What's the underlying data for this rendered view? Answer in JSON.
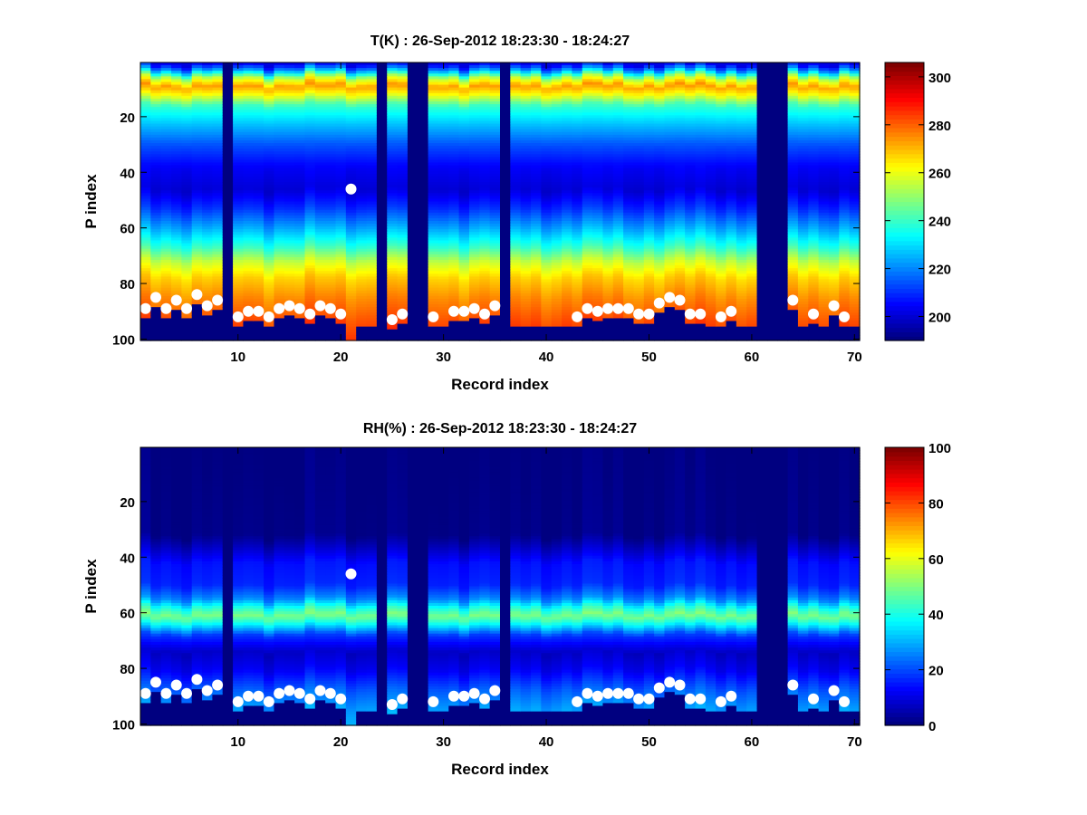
{
  "chart_data": [
    {
      "type": "heatmap",
      "title": "T(K) : 26-Sep-2012 18:23:30 - 18:24:27",
      "xlabel": "Record index",
      "ylabel": "P index",
      "xlim": [
        0.5,
        70.5
      ],
      "ylim": [
        100.5,
        0.5
      ],
      "xticks": [
        10,
        20,
        30,
        40,
        50,
        60,
        70
      ],
      "yticks": [
        20,
        40,
        60,
        80,
        100
      ],
      "colorbar": {
        "min": 190,
        "max": 306,
        "ticks": [
          200,
          220,
          240,
          260,
          280,
          300
        ]
      },
      "colormap": "jet",
      "missing_columns": [
        9,
        24,
        27,
        28,
        36,
        61,
        62,
        63
      ],
      "missing_value": 190,
      "profile": [
        {
          "p": 1,
          "v": 203
        },
        {
          "p": 3,
          "v": 220
        },
        {
          "p": 6,
          "v": 255
        },
        {
          "p": 9,
          "v": 274
        },
        {
          "p": 12,
          "v": 262
        },
        {
          "p": 16,
          "v": 240
        },
        {
          "p": 22,
          "v": 228
        },
        {
          "p": 30,
          "v": 214
        },
        {
          "p": 38,
          "v": 204
        },
        {
          "p": 46,
          "v": 200
        },
        {
          "p": 53,
          "v": 210
        },
        {
          "p": 60,
          "v": 224
        },
        {
          "p": 67,
          "v": 240
        },
        {
          "p": 72,
          "v": 256
        },
        {
          "p": 78,
          "v": 268
        },
        {
          "p": 85,
          "v": 276
        },
        {
          "p": 92,
          "v": 282
        },
        {
          "p": 100,
          "v": 288
        }
      ],
      "surface_points": [
        {
          "x": 1,
          "y": 89
        },
        {
          "x": 2,
          "y": 85
        },
        {
          "x": 3,
          "y": 89
        },
        {
          "x": 4,
          "y": 86
        },
        {
          "x": 5,
          "y": 89
        },
        {
          "x": 6,
          "y": 84
        },
        {
          "x": 7,
          "y": 88
        },
        {
          "x": 8,
          "y": 86
        },
        {
          "x": 10,
          "y": 92
        },
        {
          "x": 11,
          "y": 90
        },
        {
          "x": 12,
          "y": 90
        },
        {
          "x": 13,
          "y": 92
        },
        {
          "x": 14,
          "y": 89
        },
        {
          "x": 15,
          "y": 88
        },
        {
          "x": 16,
          "y": 89
        },
        {
          "x": 17,
          "y": 91
        },
        {
          "x": 18,
          "y": 88
        },
        {
          "x": 19,
          "y": 89
        },
        {
          "x": 20,
          "y": 91
        },
        {
          "x": 21,
          "y": 46
        },
        {
          "x": 25,
          "y": 93
        },
        {
          "x": 26,
          "y": 91
        },
        {
          "x": 29,
          "y": 92
        },
        {
          "x": 31,
          "y": 90
        },
        {
          "x": 32,
          "y": 90
        },
        {
          "x": 33,
          "y": 89
        },
        {
          "x": 34,
          "y": 91
        },
        {
          "x": 35,
          "y": 88
        },
        {
          "x": 43,
          "y": 92
        },
        {
          "x": 44,
          "y": 89
        },
        {
          "x": 45,
          "y": 90
        },
        {
          "x": 46,
          "y": 89
        },
        {
          "x": 47,
          "y": 89
        },
        {
          "x": 48,
          "y": 89
        },
        {
          "x": 49,
          "y": 91
        },
        {
          "x": 50,
          "y": 91
        },
        {
          "x": 51,
          "y": 87
        },
        {
          "x": 52,
          "y": 85
        },
        {
          "x": 53,
          "y": 86
        },
        {
          "x": 54,
          "y": 91
        },
        {
          "x": 55,
          "y": 91
        },
        {
          "x": 57,
          "y": 92
        },
        {
          "x": 58,
          "y": 90
        },
        {
          "x": 64,
          "y": 86
        },
        {
          "x": 66,
          "y": 91
        },
        {
          "x": 68,
          "y": 88
        },
        {
          "x": 69,
          "y": 92
        }
      ]
    },
    {
      "type": "heatmap",
      "title": "RH(%) : 26-Sep-2012 18:23:30 - 18:24:27",
      "xlabel": "Record index",
      "ylabel": "P index",
      "xlim": [
        0.5,
        70.5
      ],
      "ylim": [
        100.5,
        0.5
      ],
      "xticks": [
        10,
        20,
        30,
        40,
        50,
        60,
        70
      ],
      "yticks": [
        20,
        40,
        60,
        80,
        100
      ],
      "colorbar": {
        "min": 0,
        "max": 100,
        "ticks": [
          0,
          20,
          40,
          60,
          80,
          100
        ]
      },
      "colormap": "jet",
      "missing_columns": [
        9,
        24,
        27,
        28,
        36,
        61,
        62,
        63
      ],
      "missing_value": 0,
      "profile": [
        {
          "p": 1,
          "v": 0
        },
        {
          "p": 32,
          "v": 1
        },
        {
          "p": 36,
          "v": 6
        },
        {
          "p": 42,
          "v": 14
        },
        {
          "p": 50,
          "v": 16
        },
        {
          "p": 55,
          "v": 26
        },
        {
          "p": 58,
          "v": 40
        },
        {
          "p": 61,
          "v": 50
        },
        {
          "p": 64,
          "v": 38
        },
        {
          "p": 68,
          "v": 18
        },
        {
          "p": 74,
          "v": 7
        },
        {
          "p": 80,
          "v": 11
        },
        {
          "p": 88,
          "v": 22
        },
        {
          "p": 94,
          "v": 28
        },
        {
          "p": 100,
          "v": 32
        }
      ],
      "surface_points": [
        {
          "x": 1,
          "y": 89
        },
        {
          "x": 2,
          "y": 85
        },
        {
          "x": 3,
          "y": 89
        },
        {
          "x": 4,
          "y": 86
        },
        {
          "x": 5,
          "y": 89
        },
        {
          "x": 6,
          "y": 84
        },
        {
          "x": 7,
          "y": 88
        },
        {
          "x": 8,
          "y": 86
        },
        {
          "x": 10,
          "y": 92
        },
        {
          "x": 11,
          "y": 90
        },
        {
          "x": 12,
          "y": 90
        },
        {
          "x": 13,
          "y": 92
        },
        {
          "x": 14,
          "y": 89
        },
        {
          "x": 15,
          "y": 88
        },
        {
          "x": 16,
          "y": 89
        },
        {
          "x": 17,
          "y": 91
        },
        {
          "x": 18,
          "y": 88
        },
        {
          "x": 19,
          "y": 89
        },
        {
          "x": 20,
          "y": 91
        },
        {
          "x": 21,
          "y": 46
        },
        {
          "x": 25,
          "y": 93
        },
        {
          "x": 26,
          "y": 91
        },
        {
          "x": 29,
          "y": 92
        },
        {
          "x": 31,
          "y": 90
        },
        {
          "x": 32,
          "y": 90
        },
        {
          "x": 33,
          "y": 89
        },
        {
          "x": 34,
          "y": 91
        },
        {
          "x": 35,
          "y": 88
        },
        {
          "x": 43,
          "y": 92
        },
        {
          "x": 44,
          "y": 89
        },
        {
          "x": 45,
          "y": 90
        },
        {
          "x": 46,
          "y": 89
        },
        {
          "x": 47,
          "y": 89
        },
        {
          "x": 48,
          "y": 89
        },
        {
          "x": 49,
          "y": 91
        },
        {
          "x": 50,
          "y": 91
        },
        {
          "x": 51,
          "y": 87
        },
        {
          "x": 52,
          "y": 85
        },
        {
          "x": 53,
          "y": 86
        },
        {
          "x": 54,
          "y": 91
        },
        {
          "x": 55,
          "y": 91
        },
        {
          "x": 57,
          "y": 92
        },
        {
          "x": 58,
          "y": 90
        },
        {
          "x": 64,
          "y": 86
        },
        {
          "x": 66,
          "y": 91
        },
        {
          "x": 68,
          "y": 88
        },
        {
          "x": 69,
          "y": 92
        }
      ]
    }
  ]
}
